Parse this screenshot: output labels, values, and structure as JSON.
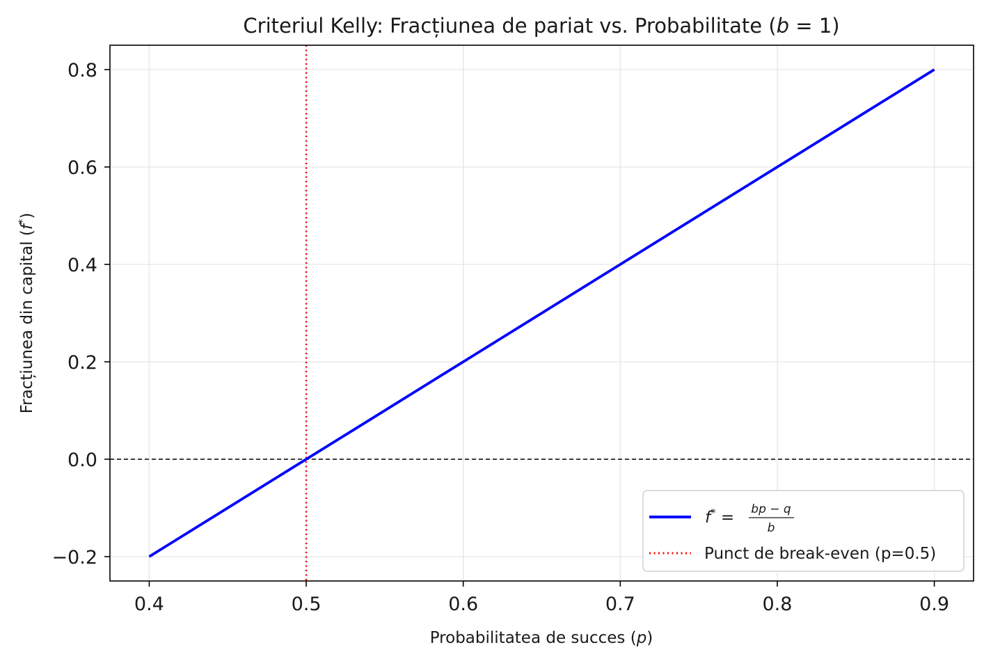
{
  "chart_data": {
    "type": "line",
    "title_prefix": "Criteriul Kelly: Fracțiunea de pariat vs. Probabilitate (",
    "title_var": "b",
    "title_suffix": " = 1)",
    "xlabel_prefix": "Probabilitatea de succes (",
    "xlabel_var": "p",
    "xlabel_suffix": ")",
    "ylabel_prefix": "Fracțiunea din capital (",
    "ylabel_var": "f",
    "ylabel_sup": "*",
    "ylabel_suffix": ")",
    "xlim": [
      0.375,
      0.925
    ],
    "ylim": [
      -0.25,
      0.85
    ],
    "xticks": [
      0.4,
      0.5,
      0.6,
      0.7,
      0.8,
      0.9
    ],
    "xtick_labels": [
      "0.4",
      "0.5",
      "0.6",
      "0.7",
      "0.8",
      "0.9"
    ],
    "yticks": [
      -0.2,
      0.0,
      0.2,
      0.4,
      0.6,
      0.8
    ],
    "ytick_labels": [
      "−0.2",
      "0.0",
      "0.2",
      "0.4",
      "0.6",
      "0.8"
    ],
    "grid": true,
    "series": [
      {
        "name": "f* = (bp − q) / b",
        "color": "#0000ff",
        "style": "solid",
        "x": [
          0.4,
          0.5,
          0.6,
          0.7,
          0.8,
          0.9
        ],
        "y": [
          -0.2,
          0.0,
          0.2,
          0.4,
          0.6,
          0.8
        ]
      }
    ],
    "reference_lines": {
      "vertical": {
        "x": 0.5,
        "color": "#ff0000",
        "style": "dotted",
        "label": "Punct de break-even (p=0.5)"
      },
      "horizontal": {
        "y": 0.0,
        "color": "#000000",
        "style": "dashed"
      }
    },
    "legend": {
      "placement": "lower-right",
      "entries": [
        {
          "f": "f",
          "sup": "*",
          "eq": " =",
          "num": "bp − q",
          "den": "b"
        },
        {
          "text": "Punct de break-even (p=0.5)"
        }
      ]
    }
  }
}
